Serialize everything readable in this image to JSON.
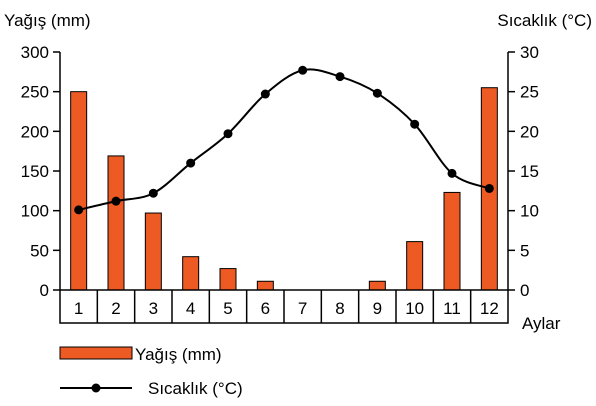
{
  "chart_data": {
    "type": "bar",
    "xlabel": "Aylar",
    "categories": [
      "1",
      "2",
      "3",
      "4",
      "5",
      "6",
      "7",
      "8",
      "9",
      "10",
      "11",
      "12"
    ],
    "y_left": {
      "label": "Yağış (mm)",
      "ylim": [
        0,
        300
      ],
      "ticks": [
        0,
        50,
        100,
        150,
        200,
        250,
        300
      ]
    },
    "y_right": {
      "label": "Sıcaklık (°C)",
      "ylim": [
        0,
        30
      ],
      "ticks": [
        0,
        5,
        10,
        15,
        20,
        25,
        30
      ]
    },
    "series": [
      {
        "name": "Yağış (mm)",
        "kind": "bar",
        "axis": "left",
        "color": "#ee5a24",
        "values": [
          250,
          169,
          97,
          42,
          27,
          11,
          0,
          0,
          11,
          61,
          123,
          255
        ]
      },
      {
        "name": "Sıcaklık (°C)",
        "kind": "line",
        "axis": "right",
        "color": "#000000",
        "values": [
          10.1,
          11.2,
          12.2,
          16,
          19.7,
          24.7,
          27.7,
          26.9,
          24.8,
          20.9,
          14.7,
          12.8
        ]
      }
    ],
    "grid": false,
    "legend": "bottom-left"
  }
}
